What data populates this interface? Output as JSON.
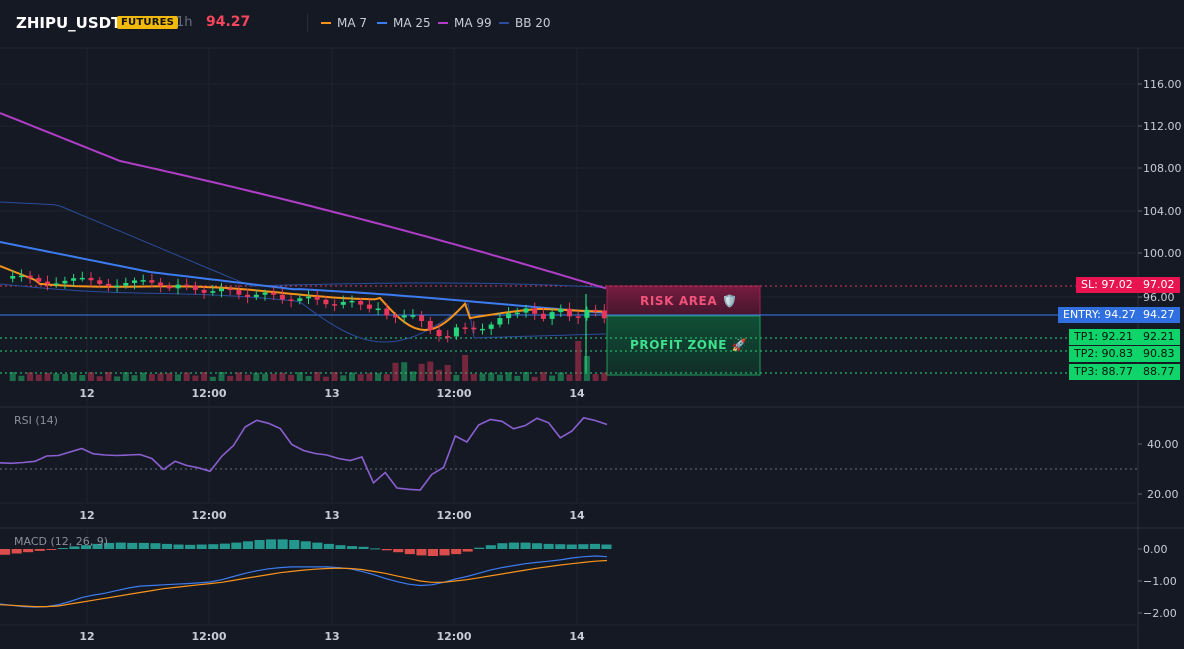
{
  "header": {
    "symbol": "ZHIPU_USDT",
    "badge": "FUTURES",
    "timeframe": "1h",
    "last_price": "94.27",
    "indicators": [
      {
        "label": "MA 7",
        "color": "#f7931a"
      },
      {
        "label": "MA 25",
        "color": "#3c7cf0"
      },
      {
        "label": "MA 99",
        "color": "#b03ec8"
      },
      {
        "label": "BB 20",
        "color": "#2a4d9c"
      }
    ]
  },
  "levels": {
    "sl": {
      "label": "SL: 97.02",
      "value": "97.02",
      "price": 97.02
    },
    "entry": {
      "label": "ENTRY: 94.27",
      "value": "94.27",
      "price": 94.27
    },
    "tp1": {
      "label": "TP1: 92.21",
      "value": "92.21",
      "price": 92.21
    },
    "tp2": {
      "label": "TP2: 90.83",
      "value": "90.83",
      "price": 90.83
    },
    "tp3": {
      "label": "TP3: 88.77",
      "value": "88.77",
      "price": 88.77
    }
  },
  "zones": {
    "risk_label": "RISK AREA 🛡️",
    "profit_label": "PROFIT ZONE 🚀"
  },
  "colors": {
    "up": "#26d67a",
    "down": "#e8375c",
    "ma7": "#f7931a",
    "ma25": "#3c7cf0",
    "ma99": "#b03ec8",
    "bb": "#2a4d9c",
    "rsi": "#8a5fd0",
    "macd": "#3c7cf0",
    "signal": "#f7931a"
  },
  "time_axis": [
    "12",
    "12:00",
    "13",
    "12:00",
    "14"
  ],
  "price_axis": [
    "116.00",
    "112.00",
    "108.00",
    "104.00",
    "100.00",
    "96.00"
  ],
  "rsi": {
    "label": "RSI (14)",
    "axis": [
      "40.00",
      "20.00"
    ],
    "values": [
      32.5,
      32.3,
      32.6,
      33.1,
      35.2,
      35.4,
      36.8,
      38.2,
      36.1,
      35.6,
      35.4,
      35.6,
      35.8,
      34.2,
      29.8,
      33.1,
      31.4,
      30.5,
      29.1,
      35.1,
      39.4,
      46.8,
      49.5,
      48.3,
      46.2,
      39.8,
      37.4,
      36.2,
      35.6,
      34.2,
      33.4,
      34.8,
      24.5,
      28.6,
      22.4,
      21.9,
      21.6,
      27.9,
      30.6,
      43.2,
      40.8,
      47.6,
      49.8,
      49.1,
      46.1,
      47.4,
      50.3,
      48.5,
      42.5,
      45.2,
      50.5,
      49.4,
      47.8
    ]
  },
  "macd": {
    "label": "MACD (12, 26, 9)",
    "axis": [
      "0.00",
      "−1.00",
      "−2.00"
    ],
    "hist": [
      -0.18,
      -0.14,
      -0.1,
      -0.06,
      -0.02,
      0.03,
      0.08,
      0.12,
      0.16,
      0.19,
      0.2,
      0.19,
      0.19,
      0.18,
      0.16,
      0.14,
      0.13,
      0.14,
      0.15,
      0.17,
      0.2,
      0.24,
      0.28,
      0.3,
      0.3,
      0.28,
      0.24,
      0.2,
      0.16,
      0.12,
      0.09,
      0.07,
      0.02,
      -0.04,
      -0.1,
      -0.16,
      -0.2,
      -0.22,
      -0.2,
      -0.16,
      -0.08,
      0.04,
      0.12,
      0.18,
      0.2,
      0.2,
      0.18,
      0.16,
      0.15,
      0.14,
      0.15,
      0.16,
      0.14
    ],
    "line": [
      -1.72,
      -1.76,
      -1.8,
      -1.82,
      -1.8,
      -1.74,
      -1.64,
      -1.52,
      -1.44,
      -1.38,
      -1.3,
      -1.22,
      -1.16,
      -1.14,
      -1.12,
      -1.1,
      -1.08,
      -1.06,
      -1.03,
      -0.96,
      -0.86,
      -0.76,
      -0.68,
      -0.62,
      -0.58,
      -0.56,
      -0.56,
      -0.56,
      -0.56,
      -0.58,
      -0.62,
      -0.7,
      -0.8,
      -0.92,
      -1.02,
      -1.1,
      -1.14,
      -1.12,
      -1.04,
      -0.94,
      -0.86,
      -0.76,
      -0.66,
      -0.58,
      -0.52,
      -0.46,
      -0.42,
      -0.38,
      -0.34,
      -0.28,
      -0.24,
      -0.22,
      -0.24
    ],
    "signal": [
      -1.74,
      -1.76,
      -1.78,
      -1.8,
      -1.8,
      -1.78,
      -1.72,
      -1.66,
      -1.6,
      -1.54,
      -1.48,
      -1.42,
      -1.36,
      -1.3,
      -1.24,
      -1.2,
      -1.16,
      -1.12,
      -1.08,
      -1.04,
      -0.98,
      -0.92,
      -0.86,
      -0.8,
      -0.74,
      -0.7,
      -0.66,
      -0.63,
      -0.61,
      -0.6,
      -0.61,
      -0.64,
      -0.7,
      -0.76,
      -0.84,
      -0.92,
      -1.0,
      -1.04,
      -1.04,
      -1.0,
      -0.96,
      -0.9,
      -0.84,
      -0.78,
      -0.72,
      -0.66,
      -0.6,
      -0.55,
      -0.5,
      -0.46,
      -0.42,
      -0.38,
      -0.36
    ]
  }
}
